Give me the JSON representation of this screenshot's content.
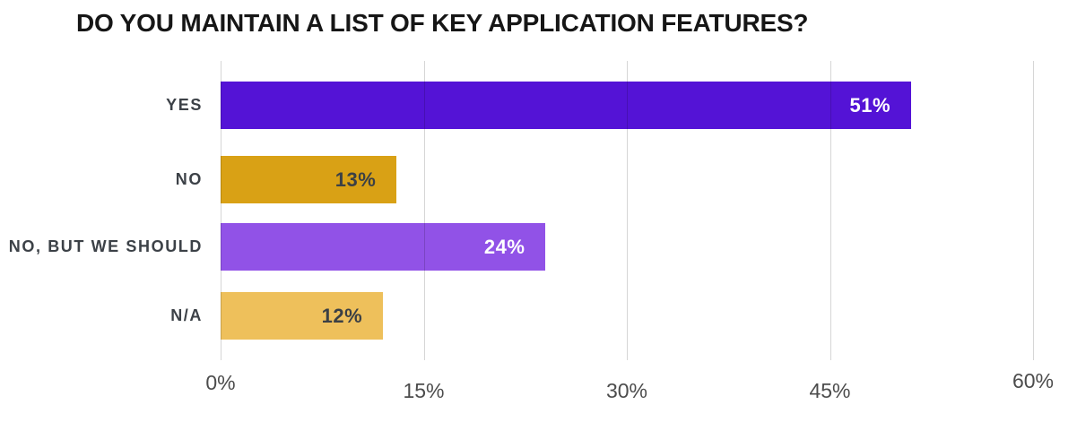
{
  "chart_data": {
    "type": "bar",
    "orientation": "horizontal",
    "title": "DO YOU MAINTAIN A LIST OF KEY APPLICATION FEATURES?",
    "categories": [
      "YES",
      "NO",
      "NO, BUT WE SHOULD",
      "N/A"
    ],
    "values": [
      51,
      13,
      24,
      12
    ],
    "value_labels": [
      "51%",
      "13%",
      "24%",
      "12%"
    ],
    "bar_colors": [
      "#5413D6",
      "#D9A115",
      "#9152E7",
      "#EEC05B"
    ],
    "value_label_colors": [
      "#FFFFFF",
      "#3B4045",
      "#FFFFFF",
      "#3B4045"
    ],
    "xlabel": "",
    "ylabel": "",
    "xlim": [
      0,
      60
    ],
    "x_ticks": [
      {
        "value": 0,
        "label": "0%"
      },
      {
        "value": 15,
        "label": "15%"
      },
      {
        "value": 30,
        "label": "30%"
      },
      {
        "value": 45,
        "label": "45%"
      },
      {
        "value": 60,
        "label": "60%"
      }
    ],
    "grid": "vertical-lines-only",
    "legend": "none"
  },
  "colors": {
    "background": "#FFFFFF",
    "title": "#161616",
    "category_label": "#3C4147",
    "tick_label": "#4C4C4C",
    "gridline": "#D6D6D6"
  }
}
